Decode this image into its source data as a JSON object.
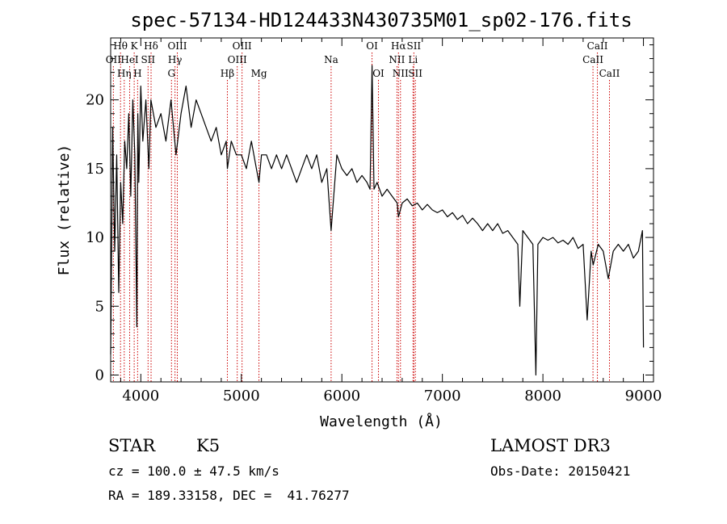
{
  "chart_data": {
    "type": "line",
    "title": "spec-57134-HD124433N430735M01_sp02-176.fits",
    "xlabel": "Wavelength (Å)",
    "ylabel": "Flux (relative)",
    "xlim": [
      3700,
      9100
    ],
    "ylim": [
      -0.5,
      24.5
    ],
    "xticks": [
      4000,
      5000,
      6000,
      7000,
      8000,
      9000
    ],
    "yticks": [
      0,
      5,
      10,
      15,
      20
    ],
    "series": [
      {
        "name": "flux",
        "x": [
          3700,
          3720,
          3740,
          3760,
          3780,
          3800,
          3820,
          3840,
          3860,
          3880,
          3900,
          3920,
          3940,
          3960,
          3970,
          3980,
          4000,
          4020,
          4050,
          4080,
          4100,
          4150,
          4200,
          4250,
          4300,
          4350,
          4400,
          4450,
          4500,
          4550,
          4600,
          4650,
          4700,
          4750,
          4800,
          4850,
          4861,
          4900,
          4950,
          5000,
          5050,
          5100,
          5150,
          5175,
          5200,
          5250,
          5300,
          5350,
          5400,
          5450,
          5500,
          5550,
          5600,
          5650,
          5700,
          5750,
          5800,
          5850,
          5893,
          5950,
          6000,
          6050,
          6100,
          6150,
          6200,
          6250,
          6280,
          6300,
          6320,
          6350,
          6400,
          6450,
          6500,
          6550,
          6563,
          6600,
          6650,
          6700,
          6750,
          6800,
          6850,
          6900,
          6950,
          7000,
          7050,
          7100,
          7150,
          7200,
          7250,
          7300,
          7350,
          7400,
          7450,
          7500,
          7550,
          7600,
          7650,
          7700,
          7750,
          7770,
          7800,
          7850,
          7900,
          7930,
          7950,
          8000,
          8050,
          8100,
          8150,
          8200,
          8250,
          8300,
          8350,
          8400,
          8440,
          8480,
          8500,
          8550,
          8600,
          8650,
          8700,
          8750,
          8800,
          8850,
          8900,
          8950,
          8990,
          9000
        ],
        "y": [
          1.5,
          18,
          9,
          16,
          6,
          14,
          11,
          17,
          15,
          19,
          13,
          20,
          16,
          3.5,
          19,
          14,
          21,
          17,
          20,
          15,
          20,
          18,
          19,
          17,
          20,
          16,
          19,
          21,
          18,
          20,
          19,
          18,
          17,
          18,
          16,
          17,
          15,
          17,
          16,
          16,
          15,
          17,
          15,
          14,
          16,
          16,
          15,
          16,
          15,
          16,
          15,
          14,
          15,
          16,
          15,
          16,
          14,
          15,
          10.5,
          16,
          15,
          14.5,
          15,
          14,
          14.5,
          14,
          13.5,
          22.5,
          13.5,
          14,
          13,
          13.5,
          13,
          12.5,
          11.5,
          12.5,
          12.8,
          12.3,
          12.5,
          12,
          12.4,
          12,
          11.8,
          12,
          11.5,
          11.8,
          11.3,
          11.6,
          11,
          11.4,
          11,
          10.5,
          11,
          10.5,
          11,
          10.3,
          10.5,
          10,
          9.5,
          5,
          10.5,
          10,
          9.5,
          0,
          9.5,
          10,
          9.8,
          10,
          9.6,
          9.8,
          9.5,
          10,
          9.2,
          9.5,
          4,
          9,
          8,
          9.5,
          9,
          7,
          9,
          9.5,
          9,
          9.5,
          8.5,
          9,
          10.5,
          2
        ]
      }
    ],
    "spectral_lines": [
      {
        "label": "OII",
        "x": 3727,
        "row": 2
      },
      {
        "label": "Hθ",
        "x": 3798,
        "row": 1
      },
      {
        "label": "Hη",
        "x": 3835,
        "row": 3
      },
      {
        "label": "HeI",
        "x": 3889,
        "row": 2
      },
      {
        "label": "K",
        "x": 3934,
        "row": 1
      },
      {
        "label": "H",
        "x": 3968,
        "row": 3
      },
      {
        "label": "SII",
        "x": 4072,
        "row": 2
      },
      {
        "label": "Hδ",
        "x": 4102,
        "row": 1
      },
      {
        "label": "G",
        "x": 4305,
        "row": 3
      },
      {
        "label": "Hγ",
        "x": 4340,
        "row": 2
      },
      {
        "label": "OIII",
        "x": 4363,
        "row": 1
      },
      {
        "label": "Hβ",
        "x": 4861,
        "row": 3
      },
      {
        "label": "OIII",
        "x": 4959,
        "row": 2
      },
      {
        "label": "OIII",
        "x": 5007,
        "row": 1
      },
      {
        "label": "Mg",
        "x": 5175,
        "row": 3
      },
      {
        "label": "Na",
        "x": 5893,
        "row": 2
      },
      {
        "label": "OI",
        "x": 6300,
        "row": 1
      },
      {
        "label": "OI",
        "x": 6364,
        "row": 3
      },
      {
        "label": "NII",
        "x": 6548,
        "row": 2
      },
      {
        "label": "Hα",
        "x": 6563,
        "row": 1
      },
      {
        "label": "NII",
        "x": 6583,
        "row": 3
      },
      {
        "label": "Li",
        "x": 6708,
        "row": 2
      },
      {
        "label": "SII",
        "x": 6716,
        "row": 1
      },
      {
        "label": "SII",
        "x": 6731,
        "row": 3
      },
      {
        "label": "CaII",
        "x": 8498,
        "row": 2
      },
      {
        "label": "CaII",
        "x": 8542,
        "row": 1
      },
      {
        "label": "CaII",
        "x": 8662,
        "row": 3
      }
    ]
  },
  "info": {
    "class_label": "STAR",
    "subclass": "K5",
    "survey": "LAMOST DR3",
    "cz": "cz = 100.0 ± 47.5 km/s",
    "obs_date": "Obs-Date: 20150421",
    "coords": "RA = 189.33158, DEC =  41.76277"
  },
  "colors": {
    "spectrum": "#000000",
    "line_marker": "#cc0000",
    "axes": "#000000",
    "background": "#ffffff"
  }
}
